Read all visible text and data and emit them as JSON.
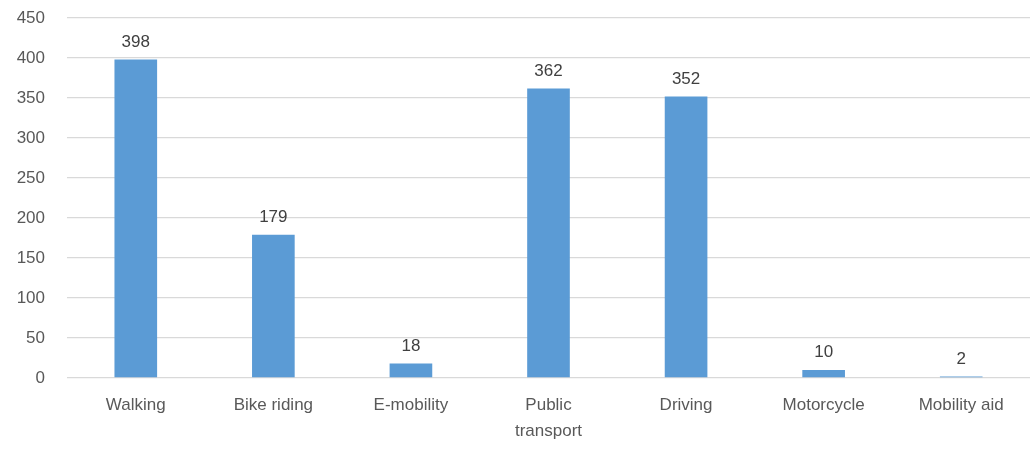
{
  "chart_data": {
    "type": "bar",
    "categories": [
      "Walking",
      "Bike riding",
      "E-mobility",
      "Public transport",
      "Driving",
      "Motorcycle",
      "Mobility aid"
    ],
    "values": [
      398,
      179,
      18,
      362,
      352,
      10,
      2
    ],
    "color": "#5b9bd5",
    "ylim": [
      0,
      450
    ],
    "yticks": [
      0,
      50,
      100,
      150,
      200,
      250,
      300,
      350,
      400,
      450
    ],
    "grid": "y",
    "data_labels": true
  }
}
